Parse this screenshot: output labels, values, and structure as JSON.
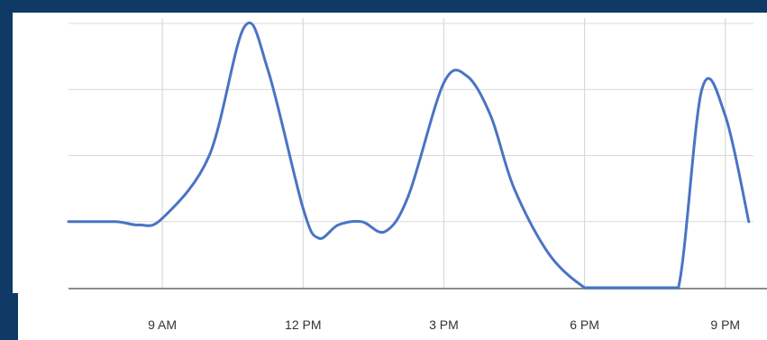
{
  "chart_data": {
    "type": "line",
    "title": "",
    "xlabel": "",
    "ylabel": "",
    "x_ticks": [
      "9 AM",
      "12 PM",
      "3 PM",
      "6 PM",
      "9 PM"
    ],
    "y_tick_labels_visible": false,
    "grid": true,
    "ylim": [
      0,
      4
    ],
    "series": [
      {
        "color": "#4a74c4",
        "x": [
          "7:00 AM",
          "8:00 AM",
          "8:30 AM",
          "9:00 AM",
          "10:00 AM",
          "10:45 AM",
          "11:15 AM",
          "12:00 PM",
          "12:20 PM",
          "12:45 PM",
          "1:15 PM",
          "1:45 PM",
          "2:15 PM",
          "3:00 PM",
          "3:30 PM",
          "4:00 PM",
          "4:30 PM",
          "5:15 PM",
          "6:00 PM",
          "6:15 PM",
          "7:30 PM",
          "8:00 PM",
          "8:30 PM",
          "9:00 PM",
          "9:30 PM"
        ],
        "values": [
          1.0,
          1.0,
          0.95,
          1.05,
          2.0,
          3.95,
          3.3,
          1.2,
          0.75,
          0.95,
          1.0,
          0.85,
          1.4,
          3.1,
          3.2,
          2.6,
          1.5,
          0.5,
          0.0,
          0.0,
          0.0,
          0.0,
          3.0,
          2.6,
          1.0
        ]
      }
    ]
  },
  "colors": {
    "background": "#0f3a66",
    "grid": "#d9d9d9",
    "baseline": "#8c8c8c",
    "line": "#4a74c4"
  }
}
